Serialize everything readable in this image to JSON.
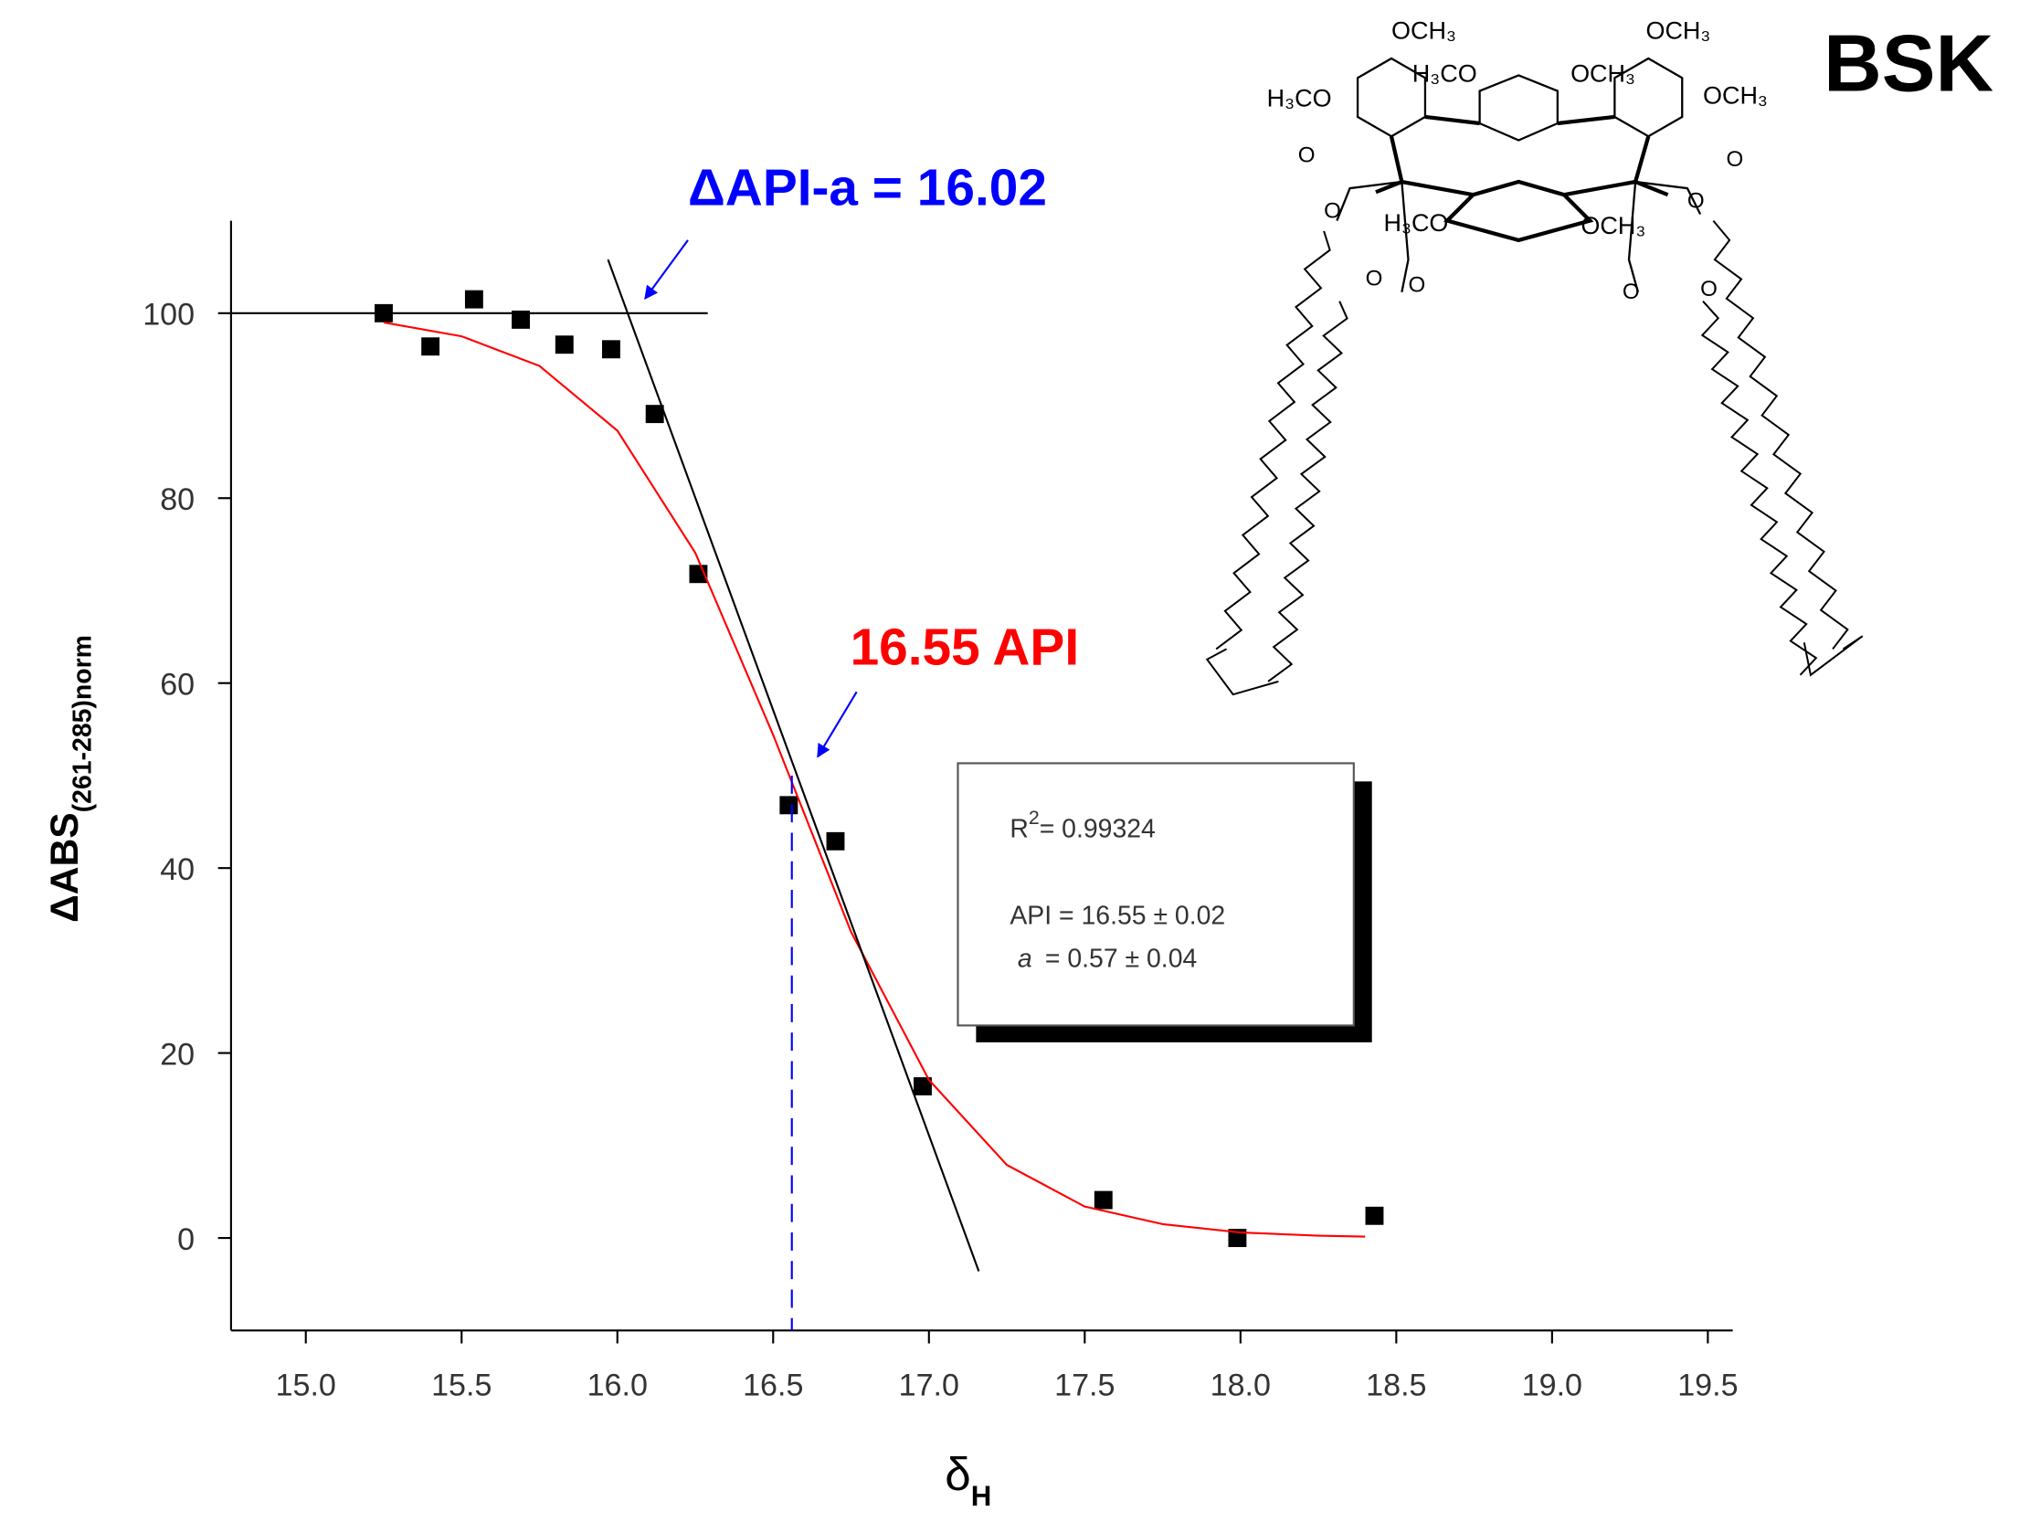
{
  "chart_data": {
    "type": "scatter",
    "title": "BSK",
    "x_label": "δ",
    "x_label_sub": "H",
    "y_label": "ΔABS",
    "y_label_sub": "(261-285)norm",
    "xlim": [
      14.76,
      19.58
    ],
    "xticks": [
      {
        "value": 15.0,
        "label": "15.0"
      },
      15.5,
      {
        "value": 16.0,
        "label": "16.0"
      },
      16.5,
      {
        "value": 17.0,
        "label": "17.0"
      },
      17.5,
      {
        "value": 18.0,
        "label": "18.0"
      },
      18.5,
      {
        "value": 19.0,
        "label": "19.0"
      },
      19.5
    ],
    "ylim": [
      -10,
      110
    ],
    "yticks": [
      0,
      20,
      40,
      60,
      80,
      100
    ],
    "series": [
      {
        "name": "data",
        "color": "#000000",
        "x": [
          15.25,
          15.4,
          15.54,
          15.69,
          15.83,
          15.98,
          16.12,
          16.26,
          16.55,
          16.7,
          16.98,
          17.56,
          17.99,
          18.43
        ],
        "values": [
          100,
          96.4,
          101.5,
          99.3,
          96.6,
          96.1,
          89.1,
          71.8,
          46.8,
          42.9,
          16.4,
          4.1,
          0,
          2.4
        ]
      },
      {
        "name": "fit",
        "color": "#ff0000",
        "x": [
          15.25,
          15.5,
          15.75,
          16.0,
          16.25,
          16.5,
          16.75,
          17.0,
          17.25,
          17.5,
          17.75,
          18.0,
          18.25,
          18.4
        ],
        "values": [
          99.0,
          97.5,
          94.3,
          87.3,
          74.1,
          54.4,
          33.1,
          17.1,
          7.9,
          3.4,
          1.5,
          0.6,
          0.25,
          0.15
        ]
      },
      {
        "name": "baseline",
        "color": "#000000",
        "x": [
          14.76,
          16.29
        ],
        "values": [
          100,
          100
        ]
      },
      {
        "name": "tangent",
        "color": "#000000",
        "x": [
          15.97,
          17.16
        ],
        "values": [
          105.8,
          -3.6
        ]
      },
      {
        "name": "API marker",
        "color": "#0000ff",
        "x": [
          16.56,
          16.56
        ],
        "values": [
          50,
          -10
        ]
      }
    ],
    "annotations": [
      {
        "text": "ΔAPI-a = 16.02",
        "color": "#0000ff"
      },
      {
        "text": "16.55 API",
        "color": "#ff0000"
      }
    ],
    "fit_box": {
      "r2_label": "R",
      "r2_sup": "2",
      "r2_value": "= 0.99324",
      "api": "API = 16.55 ± 0.02",
      "a": "a",
      "a_value": "= 0.57 ± 0.04"
    },
    "structure_labels": [
      "OCH₃",
      "H₃CO",
      "OCH₃",
      "OCH₃",
      "OCH₃",
      "H₃CO",
      "H₃CO",
      "OCH₃",
      "O",
      "O",
      "O",
      "O",
      "O",
      "O",
      "O",
      "O"
    ]
  }
}
